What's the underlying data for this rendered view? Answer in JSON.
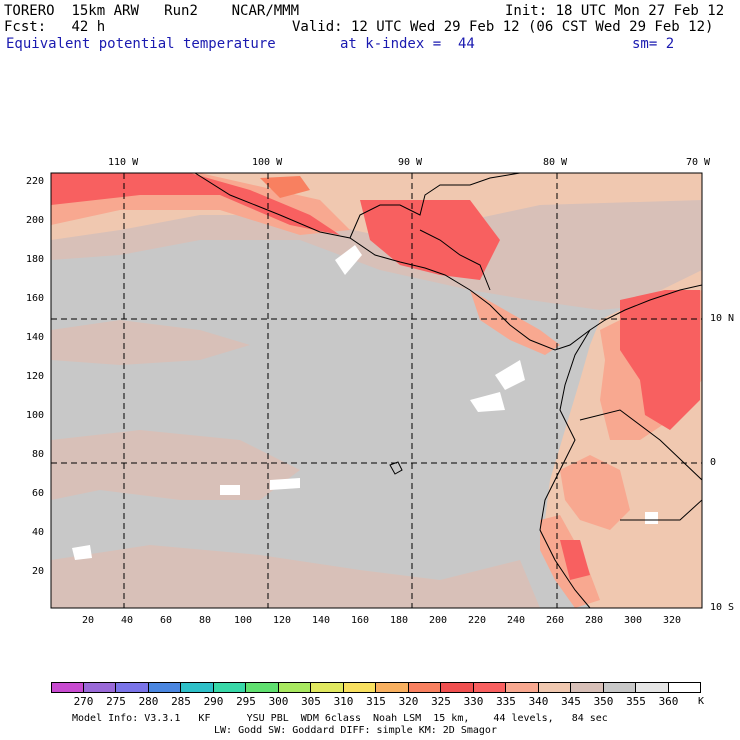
{
  "header": {
    "model": "TORERO",
    "resolution": "15km ARW",
    "run": "Run2",
    "org": "NCAR/MMM",
    "init": "Init: 18 UTC Mon 27 Feb 12",
    "fcst_label": "Fcst:",
    "fcst_hours": "42 h",
    "valid": "Valid: 12 UTC Wed 29 Feb 12 (06 CST Wed 29 Feb 12)",
    "field": "Equivalent potential temperature",
    "level": "at k-index =  44",
    "smoothing": "sm= 2"
  },
  "map": {
    "lon_labels": [
      "110 W",
      "100 W",
      "90 W",
      "80 W",
      "70 W"
    ],
    "lat_labels": [
      "10 N",
      "0",
      "10 S"
    ],
    "y_ticks": [
      "220",
      "200",
      "180",
      "160",
      "140",
      "120",
      "100",
      "80",
      "60",
      "40",
      "20"
    ],
    "x_ticks": [
      "20",
      "40",
      "60",
      "80",
      "100",
      "120",
      "140",
      "160",
      "180",
      "200",
      "220",
      "240",
      "260",
      "280",
      "300",
      "320"
    ]
  },
  "colorbar": {
    "values": [
      "270",
      "275",
      "280",
      "285",
      "290",
      "295",
      "300",
      "305",
      "310",
      "315",
      "320",
      "325",
      "330",
      "335",
      "340",
      "345",
      "350",
      "355",
      "360"
    ],
    "unit": "K",
    "colors": [
      "#c84bd0",
      "#9a6ad8",
      "#7a74e8",
      "#4a86e0",
      "#2ec0c8",
      "#38d8a8",
      "#60e070",
      "#a8e860",
      "#e0e860",
      "#f8e060",
      "#f8b060",
      "#f88060",
      "#f05050",
      "#f86060",
      "#f8a890",
      "#f0c8b0",
      "#d8c0b8",
      "#c8c8c8",
      "#e6e6e6",
      "#ffffff"
    ]
  },
  "footer": {
    "line1": "Model Info: V3.3.1   KF      YSU PBL  WDM 6class  Noah LSM  15 km,    44 levels,   84 sec",
    "line2": "LW: Godd SW: Goddard DIFF: simple KM: 2D Smagor"
  }
}
